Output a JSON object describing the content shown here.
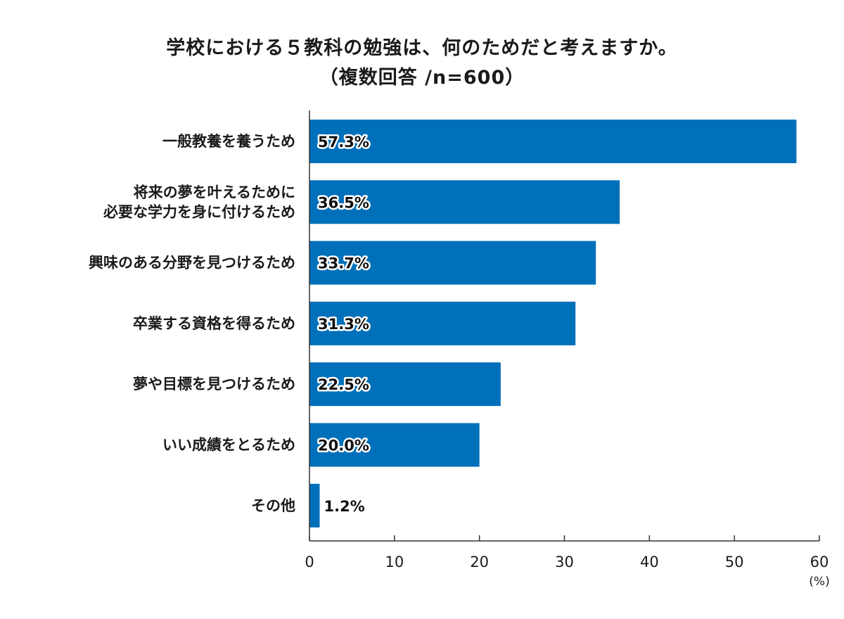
{
  "chart_data": {
    "type": "bar",
    "orientation": "horizontal",
    "title": [
      "学校における５教科の勉強は、何のためだと考えますか。",
      "（複数回答 /n=600）"
    ],
    "categories": [
      [
        "一般教養を養うため"
      ],
      [
        "将来の夢を叶えるために",
        "必要な学力を身に付けるため"
      ],
      [
        "興味のある分野を見つけるため"
      ],
      [
        "卒業する資格を得るため"
      ],
      [
        "夢や目標を見つけるため"
      ],
      [
        "いい成績をとるため"
      ],
      [
        "その他"
      ]
    ],
    "values": [
      57.3,
      36.5,
      33.7,
      31.3,
      22.5,
      20.0,
      1.2
    ],
    "value_labels": [
      "57.3%",
      "36.5%",
      "33.7%",
      "31.3%",
      "22.5%",
      "20.0%",
      "1.2%"
    ],
    "xlim": [
      0,
      60
    ],
    "xticks": [
      "0",
      "10",
      "20",
      "30",
      "40",
      "50",
      "60"
    ],
    "xunit": "(%)",
    "bar_color": "#0070bb",
    "axis_color": "#333333"
  }
}
